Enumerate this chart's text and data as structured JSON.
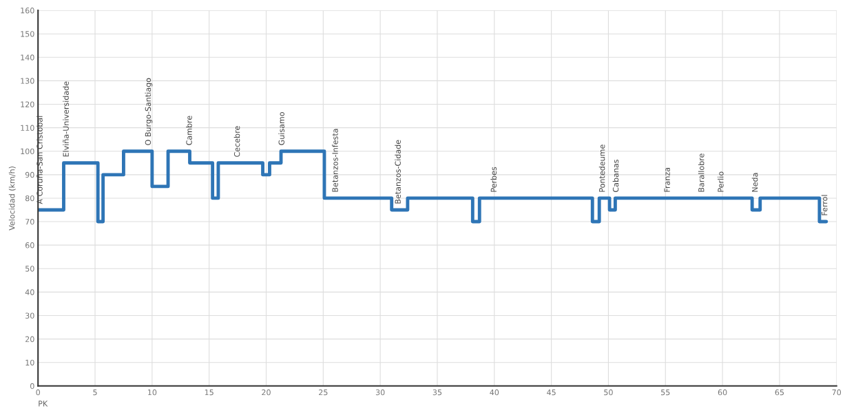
{
  "chart_data": {
    "type": "step",
    "xlabel": "PK",
    "ylabel": "Velocidad (km/h)",
    "x": [
      0,
      2.25,
      5.25,
      5.7,
      7.5,
      10,
      11.4,
      13.3,
      15.3,
      15.8,
      19.7,
      20.3,
      21.3,
      25.1,
      31,
      32.4,
      38.1,
      38.7,
      48.6,
      49.2,
      50.1,
      50.6,
      62.6,
      63.3,
      68.5,
      69.1
    ],
    "values": [
      75,
      95,
      70,
      90,
      100,
      85,
      100,
      95,
      80,
      95,
      90,
      95,
      100,
      80,
      75,
      80,
      70,
      80,
      70,
      80,
      75,
      80,
      75,
      80,
      70,
      70
    ],
    "color": "#2e75b6",
    "line_style": "solid",
    "marker": "none",
    "xlim": [
      0,
      70
    ],
    "xticks": [
      0,
      5,
      10,
      15,
      20,
      25,
      30,
      35,
      40,
      45,
      50,
      55,
      60,
      65,
      70
    ],
    "ylim": [
      0,
      160
    ],
    "yticks": [
      0,
      10,
      20,
      30,
      40,
      50,
      60,
      70,
      80,
      90,
      100,
      110,
      120,
      130,
      140,
      150,
      160
    ],
    "grid": true,
    "legend": false,
    "annotations": [
      {
        "text": "A Coruña-San Cristobal",
        "x": 0.2,
        "y": 75
      },
      {
        "text": "Elviña-Universidade",
        "x": 2.5,
        "y": 95
      },
      {
        "text": "O Burgo-Santiago",
        "x": 9.7,
        "y": 100
      },
      {
        "text": "Cambre",
        "x": 13.3,
        "y": 100
      },
      {
        "text": "Cecebre",
        "x": 17.5,
        "y": 95
      },
      {
        "text": "Guisamo",
        "x": 21.4,
        "y": 100
      },
      {
        "text": "Betanzos-Infesta",
        "x": 26.1,
        "y": 80
      },
      {
        "text": "Betanzos-Cidade",
        "x": 31.6,
        "y": 75
      },
      {
        "text": "Perbes",
        "x": 40,
        "y": 80
      },
      {
        "text": "Pontedeume",
        "x": 49.5,
        "y": 80
      },
      {
        "text": "Cabanas",
        "x": 50.7,
        "y": 80
      },
      {
        "text": "Franza",
        "x": 55.2,
        "y": 80
      },
      {
        "text": "Barallobre",
        "x": 58.2,
        "y": 80
      },
      {
        "text": "Perlio",
        "x": 59.9,
        "y": 80
      },
      {
        "text": "Neda",
        "x": 62.9,
        "y": 80
      },
      {
        "text": "Ferrol",
        "x": 69.0,
        "y": 70
      }
    ]
  }
}
